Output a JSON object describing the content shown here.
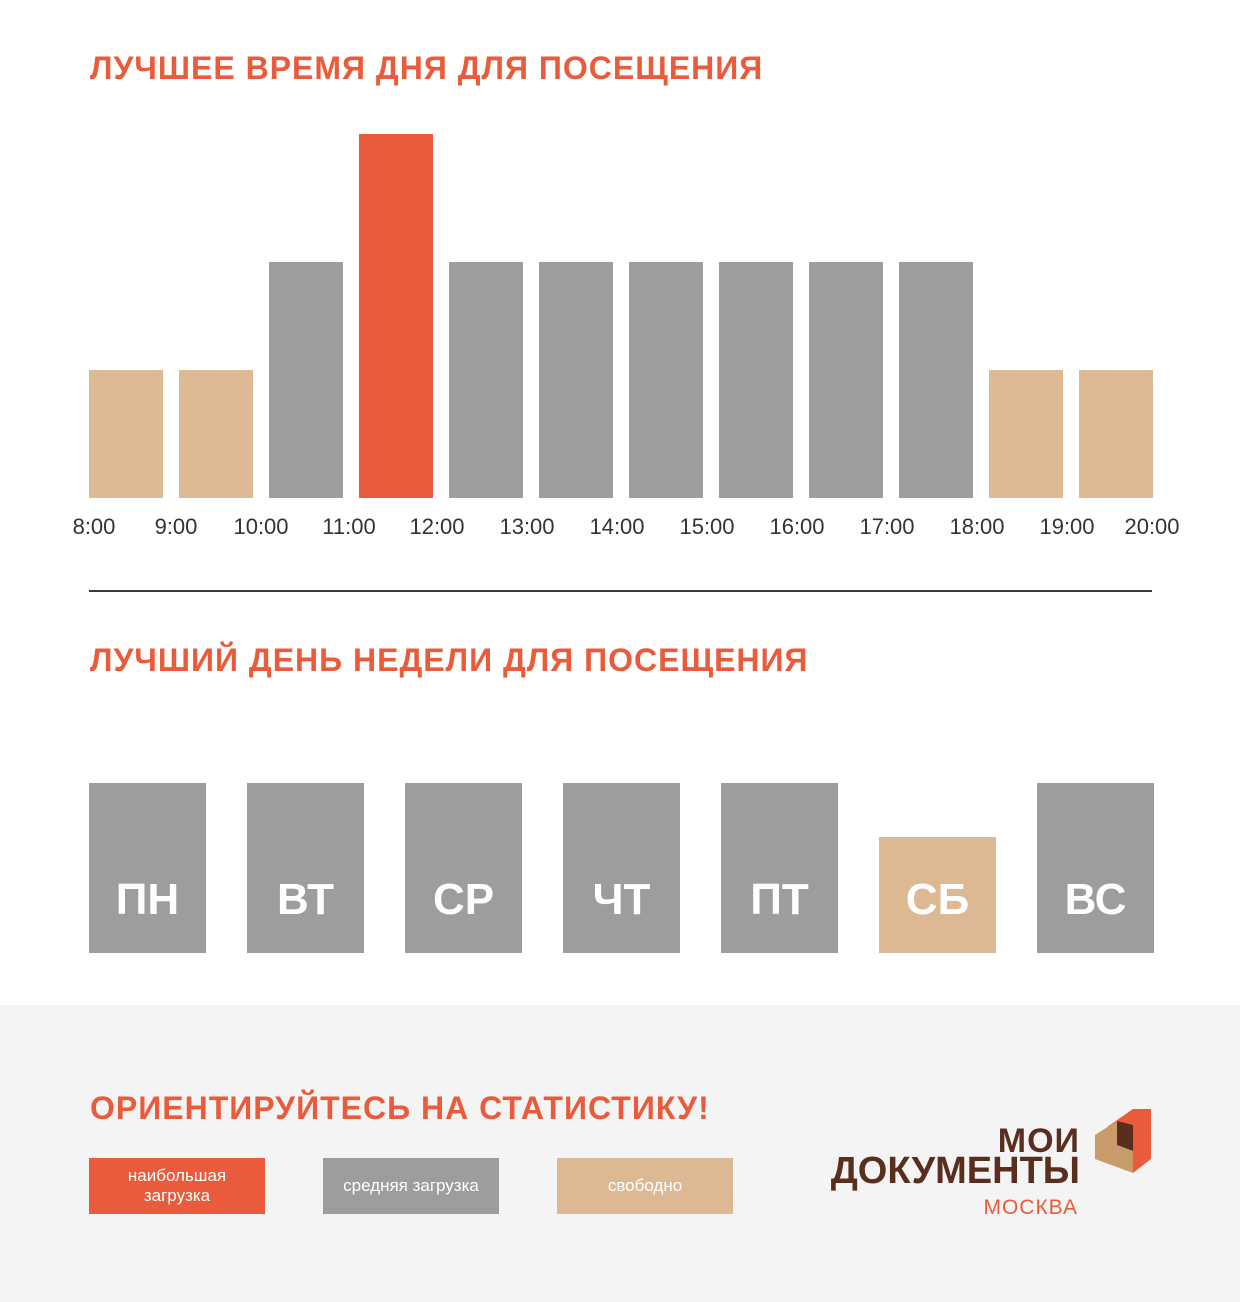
{
  "colors": {
    "high": "#E95B3B",
    "medium": "#9D9D9D",
    "free": "#DCB993",
    "brand_dark": "#5A2E1E"
  },
  "time_section": {
    "title": "ЛУЧШЕЕ ВРЕМЯ ДНЯ ДЛЯ ПОСЕЩЕНИЯ"
  },
  "day_section": {
    "title": "ЛУЧШИЙ ДЕНЬ НЕДЕЛИ ДЛЯ ПОСЕЩЕНИЯ"
  },
  "chart_data": [
    {
      "type": "bar",
      "title": "ЛУЧШЕЕ ВРЕМЯ ДНЯ ДЛЯ ПОСЕЩЕНИЯ",
      "x_ticks": [
        "8:00",
        "9:00",
        "10:00",
        "11:00",
        "12:00",
        "13:00",
        "14:00",
        "15:00",
        "16:00",
        "17:00",
        "18:00",
        "19:00",
        "20:00"
      ],
      "bins": [
        {
          "from": "8:00",
          "to": "9:00",
          "level": "free",
          "value": 1
        },
        {
          "from": "9:00",
          "to": "10:00",
          "level": "free",
          "value": 1
        },
        {
          "from": "10:00",
          "to": "11:00",
          "level": "medium",
          "value": 2
        },
        {
          "from": "11:00",
          "to": "12:00",
          "level": "high",
          "value": 3
        },
        {
          "from": "12:00",
          "to": "13:00",
          "level": "medium",
          "value": 2
        },
        {
          "from": "13:00",
          "to": "14:00",
          "level": "medium",
          "value": 2
        },
        {
          "from": "14:00",
          "to": "15:00",
          "level": "medium",
          "value": 2
        },
        {
          "from": "15:00",
          "to": "16:00",
          "level": "medium",
          "value": 2
        },
        {
          "from": "16:00",
          "to": "17:00",
          "level": "medium",
          "value": 2
        },
        {
          "from": "17:00",
          "to": "18:00",
          "level": "medium",
          "value": 2
        },
        {
          "from": "18:00",
          "to": "19:00",
          "level": "free",
          "value": 1
        },
        {
          "from": "19:00",
          "to": "20:00",
          "level": "free",
          "value": 1
        }
      ]
    },
    {
      "type": "bar",
      "title": "ЛУЧШИЙ ДЕНЬ НЕДЕЛИ ДЛЯ ПОСЕЩЕНИЯ",
      "categories": [
        "ПН",
        "ВТ",
        "СР",
        "ЧТ",
        "ПТ",
        "СБ",
        "ВС"
      ],
      "levels": [
        "medium",
        "medium",
        "medium",
        "medium",
        "medium",
        "free",
        "medium"
      ],
      "values": [
        2,
        2,
        2,
        2,
        2,
        1,
        2
      ]
    }
  ],
  "footer": {
    "title": "ОРИЕНТИРУЙТЕСЬ НА СТАТИСТИКУ!",
    "legend": {
      "high": "наибольшая загрузка",
      "medium": "средняя загрузка",
      "free": "свободно"
    }
  },
  "logo": {
    "line1": "МОИ",
    "line2": "ДОКУМЕНТЫ",
    "city": "МОСКВА"
  }
}
